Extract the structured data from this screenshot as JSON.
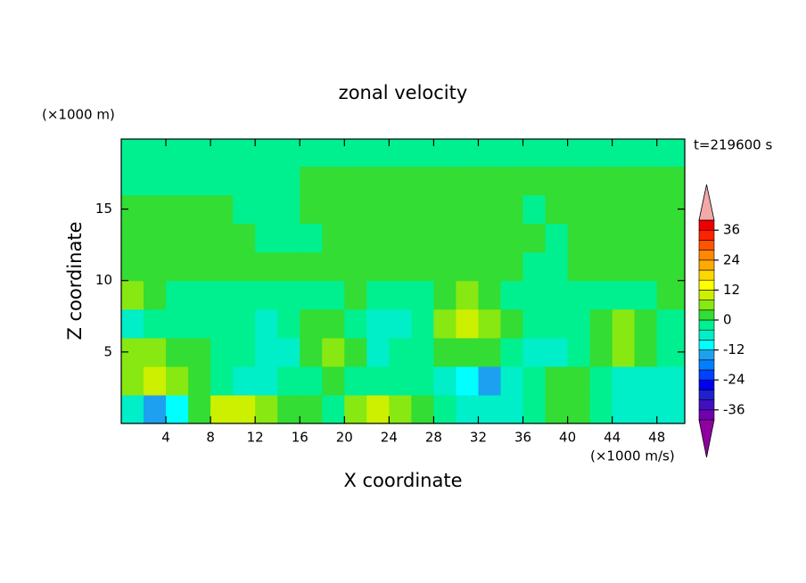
{
  "chart_data": {
    "type": "contour",
    "title": "zonal velocity",
    "xlabel": "X coordinate",
    "ylabel": "Z coordinate",
    "xunit": "(×1000 m/s)",
    "yunit": "(×1000 m)",
    "annotation": "t=219600 s",
    "xlim": [
      0,
      50.5
    ],
    "ylim": [
      0,
      19.9
    ],
    "xticks": [
      4,
      8,
      12,
      16,
      20,
      24,
      28,
      32,
      36,
      40,
      44,
      48
    ],
    "yticks": [
      5,
      10,
      15
    ],
    "x": [
      1,
      3,
      5,
      7,
      9,
      11,
      13,
      15,
      17,
      19,
      21,
      23,
      25,
      27,
      29,
      31,
      33,
      35,
      37,
      39,
      41,
      43,
      45,
      47,
      49
    ],
    "y": [
      1,
      3,
      5,
      7,
      9,
      11,
      13,
      15,
      17,
      19
    ],
    "values": [
      [
        -6,
        -14,
        -10,
        2,
        10,
        10,
        6,
        2,
        2,
        -2,
        6,
        10,
        6,
        2,
        -2,
        -6,
        -6,
        -6,
        -2,
        2,
        2,
        -2,
        -6,
        -6,
        -6
      ],
      [
        6,
        10,
        6,
        2,
        -2,
        -6,
        -6,
        -2,
        -2,
        2,
        -2,
        -2,
        -2,
        -2,
        -6,
        -10,
        -14,
        -6,
        -2,
        2,
        2,
        -2,
        -6,
        -6,
        -6
      ],
      [
        6,
        6,
        2,
        2,
        -2,
        -2,
        -6,
        -6,
        2,
        6,
        2,
        -6,
        -2,
        -2,
        2,
        2,
        2,
        -2,
        -6,
        -6,
        -2,
        2,
        6,
        2,
        -2
      ],
      [
        -6,
        -2,
        -2,
        -2,
        -2,
        -2,
        -6,
        -2,
        2,
        2,
        -2,
        -6,
        -6,
        -2,
        6,
        10,
        6,
        2,
        -2,
        -2,
        -2,
        2,
        6,
        2,
        -2
      ],
      [
        6,
        2,
        -2,
        -2,
        -2,
        -2,
        -2,
        -2,
        -2,
        -2,
        2,
        -2,
        -2,
        -2,
        2,
        6,
        2,
        -2,
        -2,
        -2,
        -2,
        -2,
        -2,
        -2,
        2
      ],
      [
        2,
        2,
        2,
        2,
        2,
        2,
        2,
        2,
        2,
        2,
        2,
        2,
        2,
        2,
        2,
        2,
        2,
        2,
        -2,
        -2,
        2,
        2,
        2,
        2,
        2
      ],
      [
        2,
        2,
        2,
        2,
        2,
        2,
        -2,
        -2,
        -2,
        2,
        2,
        2,
        2,
        2,
        2,
        2,
        2,
        2,
        2,
        -2,
        2,
        2,
        2,
        2,
        2
      ],
      [
        2,
        2,
        2,
        2,
        2,
        -2,
        -2,
        -2,
        2,
        2,
        2,
        2,
        2,
        2,
        2,
        2,
        2,
        2,
        -2,
        2,
        2,
        2,
        2,
        2,
        2
      ],
      [
        -2,
        -2,
        -2,
        -2,
        -2,
        -2,
        -2,
        -2,
        2,
        2,
        2,
        2,
        2,
        2,
        2,
        2,
        2,
        2,
        2,
        2,
        2,
        2,
        2,
        2,
        2
      ],
      [
        -2,
        -2,
        -2,
        -2,
        -2,
        -2,
        -2,
        -2,
        -2,
        -2,
        -2,
        -2,
        -2,
        -2,
        -2,
        -2,
        -2,
        -2,
        -2,
        -2,
        -2,
        -2,
        -2,
        -2,
        -2
      ]
    ],
    "colorbar": {
      "levels": [
        -40,
        -36,
        -32,
        -28,
        -24,
        -20,
        -16,
        -12,
        -8,
        -4,
        0,
        4,
        8,
        12,
        16,
        20,
        24,
        28,
        32,
        36,
        40
      ],
      "colors": [
        "#7000b0",
        "#4010c0",
        "#2020d0",
        "#0000f0",
        "#0040ff",
        "#0080ff",
        "#1ea0f0",
        "#00ffff",
        "#00eec8",
        "#00f090",
        "#33dd33",
        "#88e811",
        "#ccf000",
        "#ffff00",
        "#ffd700",
        "#ffaa00",
        "#ff8800",
        "#ff5500",
        "#ff2200",
        "#ee0000"
      ],
      "under_color": "#9000a0",
      "over_color": "#f4a8a8",
      "ticks": [
        -36,
        -24,
        -12,
        0,
        12,
        24,
        36
      ]
    }
  }
}
